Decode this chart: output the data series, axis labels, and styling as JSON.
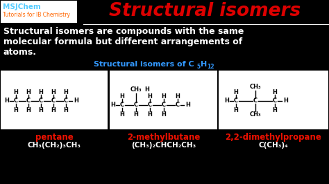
{
  "bg_color": "#000000",
  "title": "Structural isomers",
  "title_color": "#dd0000",
  "logo_line1": "MSJChem",
  "logo_line2": "Tutorials for IB Chemistry",
  "logo_color1": "#55ccff",
  "logo_color2": "#ff6600",
  "logo_box_color": "#ffffff",
  "body_text_line1": "Structural isomers are compounds with the same",
  "body_text_line2": "molecular formula but different arrangements of",
  "body_text_line3": "atoms.",
  "body_color": "#ffffff",
  "subtitle_color": "#3399ff",
  "box_bg": "#ffffff",
  "compound1_name": "pentane",
  "compound1_formula": "CH₃(CH₂)₃CH₃",
  "compound2_name": "2-methylbutane",
  "compound2_formula": "(CH₃)₂CHCH₂CH₃",
  "compound3_name": "2,2-dimethylpropane",
  "compound3_formula": "C(CH₃)₄",
  "name_color": "#ee1100",
  "formula_color": "#ffffff",
  "atom_color": "#000000"
}
